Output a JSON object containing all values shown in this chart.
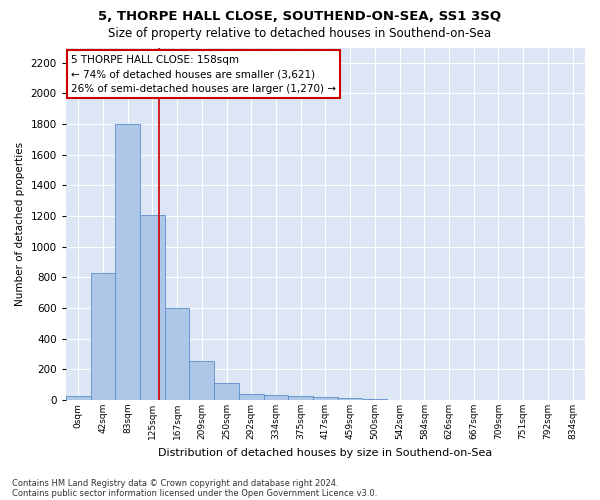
{
  "title": "5, THORPE HALL CLOSE, SOUTHEND-ON-SEA, SS1 3SQ",
  "subtitle": "Size of property relative to detached houses in Southend-on-Sea",
  "xlabel": "Distribution of detached houses by size in Southend-on-Sea",
  "ylabel": "Number of detached properties",
  "bin_labels": [
    "0sqm",
    "42sqm",
    "83sqm",
    "125sqm",
    "167sqm",
    "209sqm",
    "250sqm",
    "292sqm",
    "334sqm",
    "375sqm",
    "417sqm",
    "459sqm",
    "500sqm",
    "542sqm",
    "584sqm",
    "626sqm",
    "667sqm",
    "709sqm",
    "751sqm",
    "792sqm",
    "834sqm"
  ],
  "bar_values": [
    25,
    830,
    1800,
    1210,
    600,
    255,
    110,
    37,
    35,
    27,
    20,
    10,
    5,
    3,
    2,
    1,
    1,
    0,
    0,
    0,
    0
  ],
  "bar_color": "#aec6e8",
  "bar_edge_color": "#5b8fc9",
  "ylim": [
    0,
    2300
  ],
  "yticks": [
    0,
    200,
    400,
    600,
    800,
    1000,
    1200,
    1400,
    1600,
    1800,
    2000,
    2200
  ],
  "red_line_x": 3.76,
  "annotation_text": "5 THORPE HALL CLOSE: 158sqm\n← 74% of detached houses are smaller (3,621)\n26% of semi-detached houses are larger (1,270) →",
  "annotation_box_color": "#ffffff",
  "annotation_box_edge_color": "#cc0000",
  "footnote1": "Contains HM Land Registry data © Crown copyright and database right 2024.",
  "footnote2": "Contains public sector information licensed under the Open Government Licence v3.0.",
  "fig_bg_color": "#ffffff",
  "plot_bg_color": "#dce6f5",
  "grid_color": "#ffffff"
}
